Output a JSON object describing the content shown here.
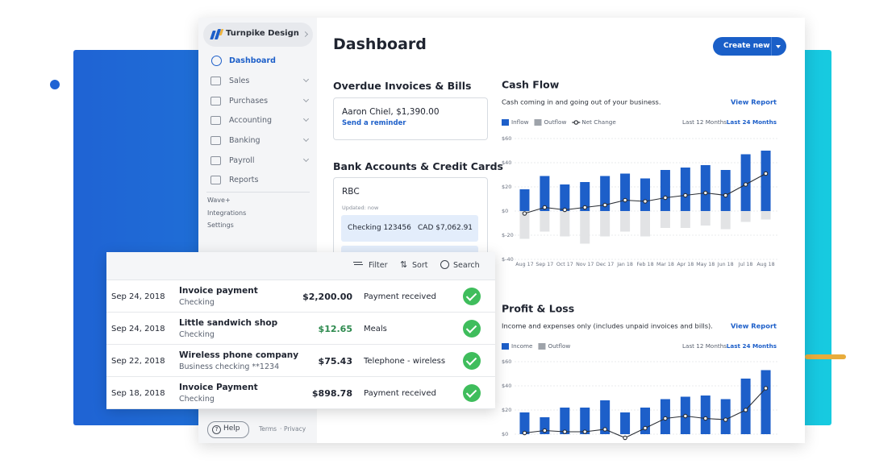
{
  "sidebar": {
    "business": "Turnpike Design",
    "nav": [
      "Dashboard",
      "Sales",
      "Purchases",
      "Accounting",
      "Banking",
      "Payroll",
      "Reports"
    ],
    "links": [
      "Wave+",
      "Integrations",
      "Settings"
    ],
    "help": "Help",
    "footer": [
      "Terms",
      "Privacy"
    ]
  },
  "header": {
    "title": "Dashboard",
    "button": "Create new"
  },
  "overdue": {
    "title": "Overdue Invoices & Bills",
    "item": "Aaron Chiel, $1,390.00",
    "action": "Send a reminder"
  },
  "bank": {
    "title": "Bank Accounts & Credit Cards",
    "name": "RBC",
    "updated": "Updated: now",
    "account": "Checking 123456",
    "balance": "CAD $7,062.91"
  },
  "transactions": {
    "tools": [
      "Filter",
      "Sort",
      "Search"
    ],
    "rows": [
      [
        "Sep 24, 2018",
        "Invoice payment",
        "Checking",
        "$2,200.00",
        "Payment received"
      ],
      [
        "Sep 24, 2018",
        "Little sandwich shop",
        "Checking",
        "$12.65",
        "Meals"
      ],
      [
        "Sep 22, 2018",
        "Wireless phone company",
        "Business checking **1234",
        "$75.43",
        "Telephone - wireless"
      ],
      [
        "Sep 18, 2018",
        "Invoice Payment",
        "Checking",
        "$898.78",
        "Payment received"
      ]
    ]
  },
  "chart_data": [
    {
      "type": "bar",
      "title": "Cash Flow",
      "subtitle": "Cash coming in and going out of your business.",
      "link": "View Report",
      "periods": [
        "Last 12 Months",
        "Last 24 Months"
      ],
      "categories": [
        "Aug 17",
        "Sep 17",
        "Oct 17",
        "Nov 17",
        "Dec 17",
        "Jan 18",
        "Feb 18",
        "Mar 18",
        "Apr 18",
        "May 18",
        "Jun 18",
        "Jul 18",
        "Aug 18"
      ],
      "series": [
        {
          "name": "Inflow",
          "color": "#1d5fc9",
          "type": "bar",
          "values": [
            18,
            29,
            22,
            24,
            29,
            31,
            27,
            34,
            36,
            38,
            34,
            47,
            50
          ]
        },
        {
          "name": "Outflow",
          "color": "#e2e3e5",
          "type": "bar",
          "values": [
            -23,
            -17,
            -21,
            -27,
            -21,
            -17,
            -21,
            -14,
            -14,
            -12,
            -15,
            -9,
            -7
          ]
        },
        {
          "name": "Net Change",
          "color": "#2b2f36",
          "type": "line",
          "values": [
            -2,
            3,
            1,
            3,
            5,
            9,
            8,
            11,
            13,
            15,
            13,
            22,
            31
          ]
        }
      ],
      "ylim": [
        -40,
        60
      ],
      "yticks": [
        {
          "value": 60,
          "label": "$60"
        },
        {
          "value": 40,
          "label": "$40"
        },
        {
          "value": 20,
          "label": "$20"
        },
        {
          "value": 0,
          "label": "$0"
        },
        {
          "value": -20,
          "label": "$-20"
        },
        {
          "value": -40,
          "label": "$-40"
        }
      ],
      "grid": true
    },
    {
      "type": "bar",
      "title": "Profit & Loss",
      "subtitle": "Income and expenses only (includes unpaid invoices and bills).",
      "link": "View Report",
      "periods": [
        "Last 12 Months",
        "Last 24 Months"
      ],
      "series": [
        {
          "name": "Income",
          "color": "#1d5fc9",
          "type": "bar",
          "values": [
            18,
            14,
            22,
            22,
            28,
            18,
            22,
            29,
            31,
            32,
            29,
            46,
            53
          ]
        },
        {
          "name": "Outflow",
          "color": "#e2e3e5",
          "type": "bar",
          "values": [
            null,
            null,
            null,
            null,
            null,
            null,
            null,
            null,
            null,
            null,
            null,
            null,
            null
          ]
        },
        {
          "color": "#2b2f36",
          "type": "line",
          "values": [
            1,
            3,
            2,
            2,
            4,
            -3,
            5,
            13,
            15,
            13,
            12,
            20,
            38
          ]
        }
      ],
      "ylim": [
        0,
        60
      ],
      "yticks": [
        {
          "value": 60,
          "label": "$60"
        },
        {
          "value": 40,
          "label": "$40"
        },
        {
          "value": 20,
          "label": "$20"
        },
        {
          "value": 0,
          "label": "$0"
        }
      ],
      "grid": true
    }
  ]
}
